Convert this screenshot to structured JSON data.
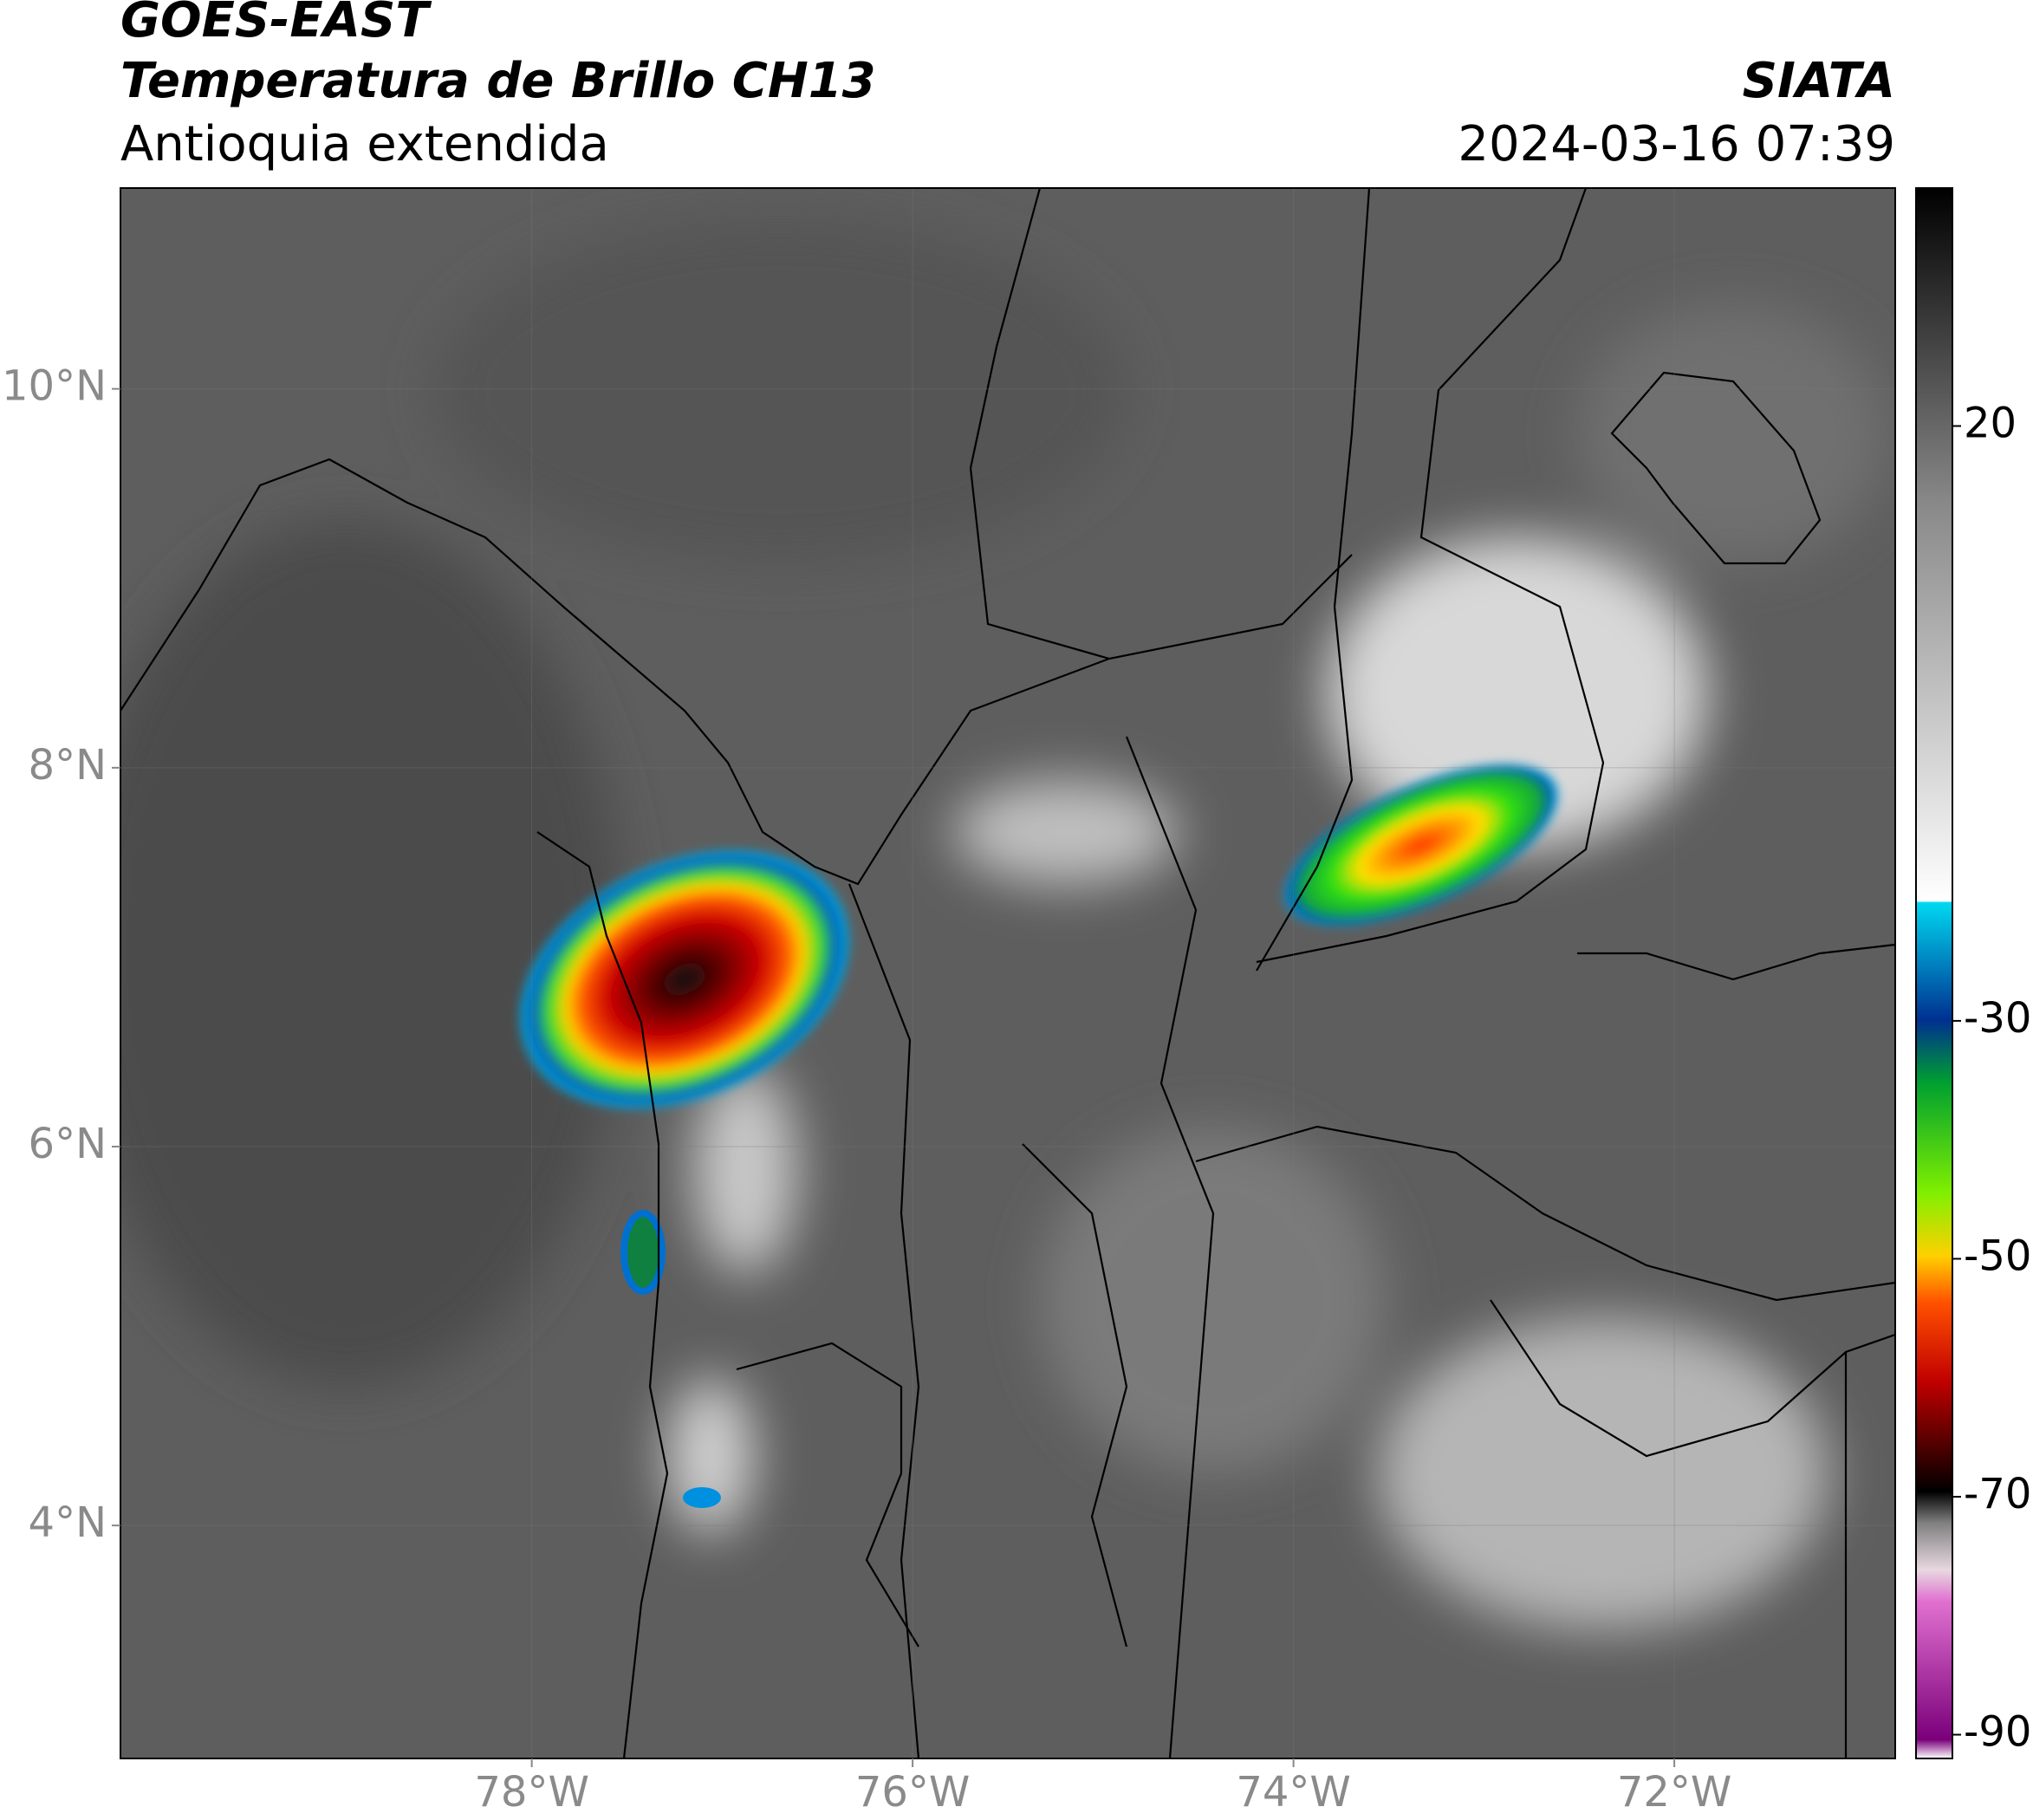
{
  "map": {
    "header": {
      "title": "GOES-EAST",
      "subtitle": "Temperatura de Brillo CH13",
      "region": "Antioquia extendida",
      "source": "SIATA",
      "datetime": "2024-03-16 07:39"
    },
    "xlim": [
      -80.16,
      -70.84
    ],
    "ylim": [
      2.77,
      11.06
    ],
    "xticks": [
      {
        "value": -78,
        "label": "78°W"
      },
      {
        "value": -76,
        "label": "76°W"
      },
      {
        "value": -74,
        "label": "74°W"
      },
      {
        "value": -72,
        "label": "72°W"
      }
    ],
    "yticks": [
      {
        "value": 10,
        "label": "10°N"
      },
      {
        "value": 8,
        "label": "8°N"
      },
      {
        "value": 6,
        "label": "6°N"
      },
      {
        "value": 4,
        "label": "4°N"
      }
    ],
    "colorbar": {
      "lim": [
        -92,
        40
      ],
      "ticks": [
        20,
        -30,
        -50,
        -70,
        -90
      ]
    }
  }
}
